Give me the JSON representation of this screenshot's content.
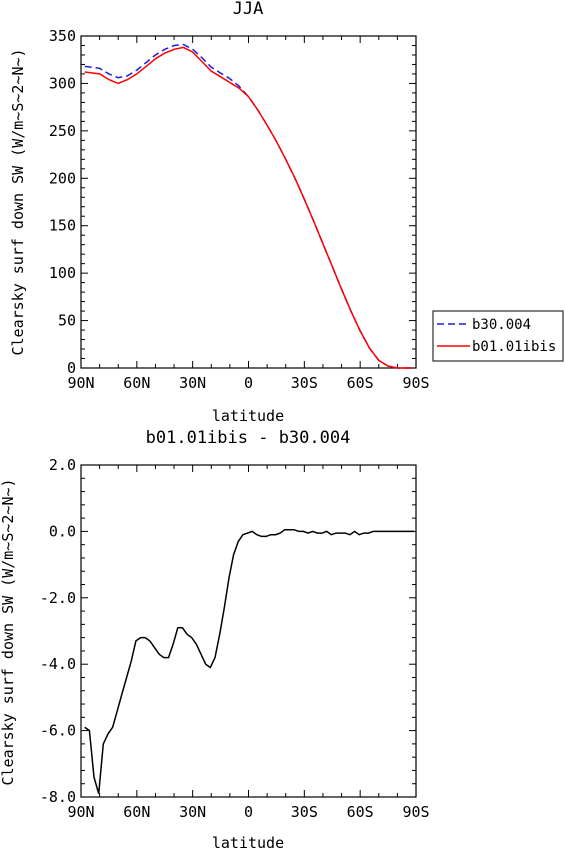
{
  "chart_data": [
    {
      "type": "line",
      "title": "JJA",
      "xlabel": "latitude",
      "ylabel": "Clearsky surf down SW (W/m~S~2~N~)",
      "xlim": [
        90,
        -90
      ],
      "ylim": [
        0,
        350
      ],
      "xticks": [
        {
          "value": 90,
          "label": "90N"
        },
        {
          "value": 60,
          "label": "60N"
        },
        {
          "value": 30,
          "label": "30N"
        },
        {
          "value": 0,
          "label": "0"
        },
        {
          "value": -30,
          "label": "30S"
        },
        {
          "value": -60,
          "label": "60S"
        },
        {
          "value": -90,
          "label": "90S"
        }
      ],
      "yticks": [
        {
          "value": 0,
          "label": "0"
        },
        {
          "value": 50,
          "label": "50"
        },
        {
          "value": 100,
          "label": "100"
        },
        {
          "value": 150,
          "label": "150"
        },
        {
          "value": 200,
          "label": "200"
        },
        {
          "value": 250,
          "label": "250"
        },
        {
          "value": 300,
          "label": "300"
        },
        {
          "value": 350,
          "label": "350"
        }
      ],
      "legend": "right",
      "series": [
        {
          "name": "b30.004",
          "color": "#1f1fd6",
          "dash": "dashed",
          "x": [
            88,
            80,
            75,
            70,
            65,
            60,
            55,
            50,
            45,
            40,
            35,
            30,
            25,
            20,
            15,
            10,
            5,
            0,
            -5,
            -10,
            -15,
            -20,
            -25,
            -30,
            -35,
            -40,
            -45,
            -50,
            -55,
            -60,
            -65,
            -70,
            -75,
            -80,
            -85,
            -88
          ],
          "y": [
            318,
            316,
            310,
            306,
            308,
            314,
            322,
            330,
            336,
            340,
            341,
            336,
            327,
            317,
            311,
            305,
            297,
            286,
            272,
            256,
            239,
            220,
            200,
            178,
            155,
            131,
            107,
            83,
            60,
            39,
            21,
            8,
            2,
            0,
            0,
            0
          ]
        },
        {
          "name": "b01.01ibis",
          "color": "#ff0000",
          "dash": "solid",
          "x": [
            88,
            80,
            75,
            70,
            65,
            60,
            55,
            50,
            45,
            40,
            35,
            30,
            25,
            20,
            15,
            10,
            5,
            0,
            -5,
            -10,
            -15,
            -20,
            -25,
            -30,
            -35,
            -40,
            -45,
            -50,
            -55,
            -60,
            -65,
            -70,
            -75,
            -80,
            -85,
            -88
          ],
          "y": [
            312,
            310,
            304,
            300,
            304,
            310,
            318,
            326,
            332,
            336,
            338,
            333,
            323,
            313,
            307,
            301,
            295,
            286,
            272,
            256,
            239,
            220,
            200,
            178,
            155,
            131,
            107,
            83,
            60,
            39,
            21,
            8,
            2,
            0,
            0,
            0
          ]
        }
      ]
    },
    {
      "type": "line",
      "title": "b01.01ibis - b30.004",
      "xlabel": "latitude",
      "ylabel": "Clearsky surf down SW (W/m~S~2~N~)",
      "xlim": [
        90,
        -90
      ],
      "ylim": [
        -8,
        2
      ],
      "xticks": [
        {
          "value": 90,
          "label": "90N"
        },
        {
          "value": 60,
          "label": "60N"
        },
        {
          "value": 30,
          "label": "30N"
        },
        {
          "value": 0,
          "label": "0"
        },
        {
          "value": -30,
          "label": "30S"
        },
        {
          "value": -60,
          "label": "60S"
        },
        {
          "value": -90,
          "label": "90S"
        }
      ],
      "yticks": [
        {
          "value": -8,
          "label": "-8.0"
        },
        {
          "value": -6,
          "label": "-6.0"
        },
        {
          "value": -4,
          "label": "-4.0"
        },
        {
          "value": -2,
          "label": "-2.0"
        },
        {
          "value": 0,
          "label": "0.0"
        },
        {
          "value": 2,
          "label": "2.0"
        }
      ],
      "series": [
        {
          "color": "#000000",
          "dash": "solid",
          "x": [
            88,
            85.5,
            83,
            80.5,
            78,
            75.5,
            73,
            70.5,
            68,
            65.5,
            63,
            60.5,
            58,
            55.5,
            53,
            50.5,
            48,
            45.5,
            43,
            40.5,
            38,
            35.5,
            33,
            30.5,
            28,
            25.5,
            23,
            20.5,
            18,
            15.5,
            13,
            10.5,
            8,
            5.5,
            3,
            0.5,
            -2,
            -4.5,
            -7,
            -9.5,
            -12,
            -14.5,
            -17,
            -19.5,
            -22,
            -24.5,
            -27,
            -29.5,
            -32,
            -34.5,
            -37,
            -39.5,
            -42,
            -44.5,
            -47,
            -49.5,
            -52,
            -54.5,
            -57,
            -59.5,
            -62,
            -64.5,
            -67,
            -69.5,
            -72,
            -74.5,
            -77,
            -79.5,
            -82,
            -84.5,
            -87,
            -89
          ],
          "y": [
            -5.9,
            -6.0,
            -7.4,
            -7.9,
            -6.4,
            -6.1,
            -5.9,
            -5.4,
            -4.9,
            -4.4,
            -3.9,
            -3.3,
            -3.2,
            -3.2,
            -3.3,
            -3.5,
            -3.7,
            -3.8,
            -3.8,
            -3.4,
            -2.9,
            -2.9,
            -3.1,
            -3.2,
            -3.4,
            -3.7,
            -4.0,
            -4.1,
            -3.8,
            -3.1,
            -2.3,
            -1.4,
            -0.7,
            -0.3,
            -0.1,
            -0.05,
            0.0,
            -0.1,
            -0.15,
            -0.15,
            -0.1,
            -0.1,
            -0.05,
            0.05,
            0.05,
            0.05,
            0.0,
            0.0,
            -0.05,
            0.0,
            -0.05,
            -0.05,
            0.0,
            -0.1,
            -0.05,
            -0.05,
            -0.05,
            -0.1,
            0.0,
            -0.1,
            -0.05,
            -0.05,
            0.0,
            0.0,
            0.0,
            0.0,
            0.0,
            0.0,
            0.0,
            0.0,
            0.0,
            0.0
          ]
        }
      ]
    }
  ]
}
